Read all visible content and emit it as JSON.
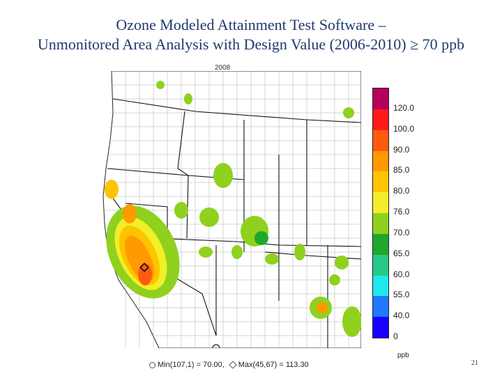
{
  "title": {
    "line1": "Ozone Modeled Attainment Test Software –",
    "line2": "Unmonitored Area Analysis with Design Value (2006-2010) ≥ 70 ppb"
  },
  "map": {
    "year_label": "2008"
  },
  "legend": {
    "unit": "ppb",
    "bins": [
      {
        "label": "120.0",
        "color": "#b5005b"
      },
      {
        "label": "100.0",
        "color": "#ff1a1a"
      },
      {
        "label": "90.0",
        "color": "#ff5a10"
      },
      {
        "label": "85.0",
        "color": "#ff9a00"
      },
      {
        "label": "80.0",
        "color": "#ffc400"
      },
      {
        "label": "76.0",
        "color": "#f2ee2a"
      },
      {
        "label": "70.0",
        "color": "#8fd11e"
      },
      {
        "label": "65.0",
        "color": "#1fa82b"
      },
      {
        "label": "60.0",
        "color": "#26c98a"
      },
      {
        "label": "55.0",
        "color": "#1ee8ee"
      },
      {
        "label": "40.0",
        "color": "#1f78ff"
      },
      {
        "label": "0",
        "color": "#1800ff"
      }
    ]
  },
  "footer": {
    "min_text": "Min(107,1) = 70.00,",
    "max_text": "Max(45,67) = 113.30"
  },
  "page_number": "21"
}
